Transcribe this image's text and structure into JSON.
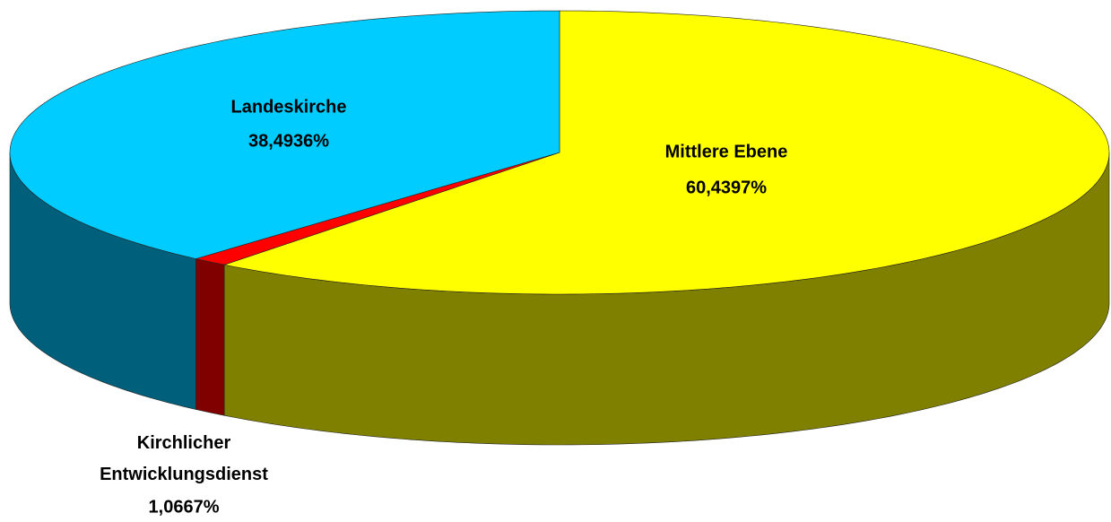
{
  "chart_data": {
    "type": "pie3d",
    "categories": [
      "Mittlere Ebene",
      "Kirchlicher Entwicklungsdienst",
      "Landeskirche"
    ],
    "values": [
      60.4397,
      1.0667,
      38.4936
    ],
    "value_labels": [
      "60,4397%",
      "1,0667%",
      "38,4936%"
    ],
    "colors": [
      "#ffff00",
      "#ff0000",
      "#00ccff"
    ],
    "side_colors": [
      "#808000",
      "#800000",
      "#005f7a"
    ]
  }
}
